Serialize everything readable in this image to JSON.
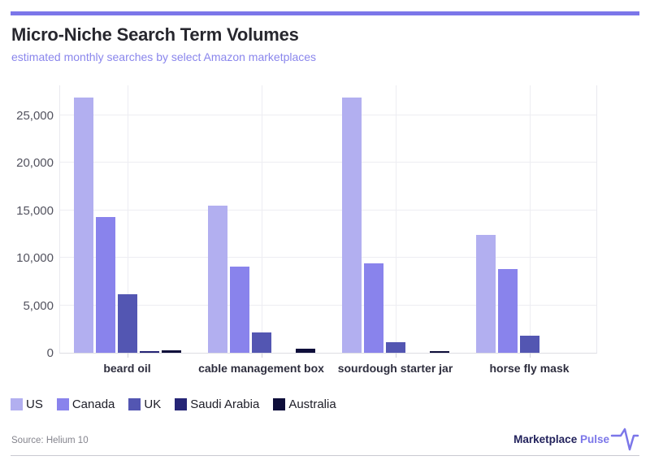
{
  "page": {
    "title": "Micro-Niche Search Term Volumes",
    "subtitle": "estimated monthly searches by select Amazon marketplaces",
    "accent_color": "#7b76e9"
  },
  "chart_data": {
    "type": "bar",
    "title": "Micro-Niche Search Term Volumes",
    "subtitle": "estimated monthly searches by select Amazon marketplaces",
    "categories": [
      "beard oil",
      "cable management box",
      "sourdough starter jar",
      "horse fly mask"
    ],
    "series": [
      {
        "name": "US",
        "color": "#b2aff0",
        "values": [
          26900,
          15500,
          26850,
          12400
        ]
      },
      {
        "name": "Canada",
        "color": "#8983ec",
        "values": [
          14300,
          9100,
          9400,
          8800
        ]
      },
      {
        "name": "UK",
        "color": "#5356b2",
        "values": [
          6200,
          2100,
          1100,
          1800
        ]
      },
      {
        "name": "Saudi Arabia",
        "color": "#262576",
        "values": [
          130,
          0,
          0,
          0
        ]
      },
      {
        "name": "Australia",
        "color": "#0e0e3a",
        "values": [
          250,
          400,
          150,
          0
        ]
      }
    ],
    "y_ticks": [
      0,
      5000,
      10000,
      15000,
      20000,
      25000
    ],
    "y_tick_labels": [
      "0",
      "5,000",
      "10,000",
      "15,000",
      "20,000",
      "25,000"
    ],
    "ylim": [
      0,
      28250
    ],
    "grid": true,
    "legend_position": "bottom",
    "xlabel": "",
    "ylabel": ""
  },
  "footer": {
    "source": "Source: Helium 10",
    "brand": {
      "name_primary": "Marketplace",
      "name_accent": "Pulse"
    }
  }
}
